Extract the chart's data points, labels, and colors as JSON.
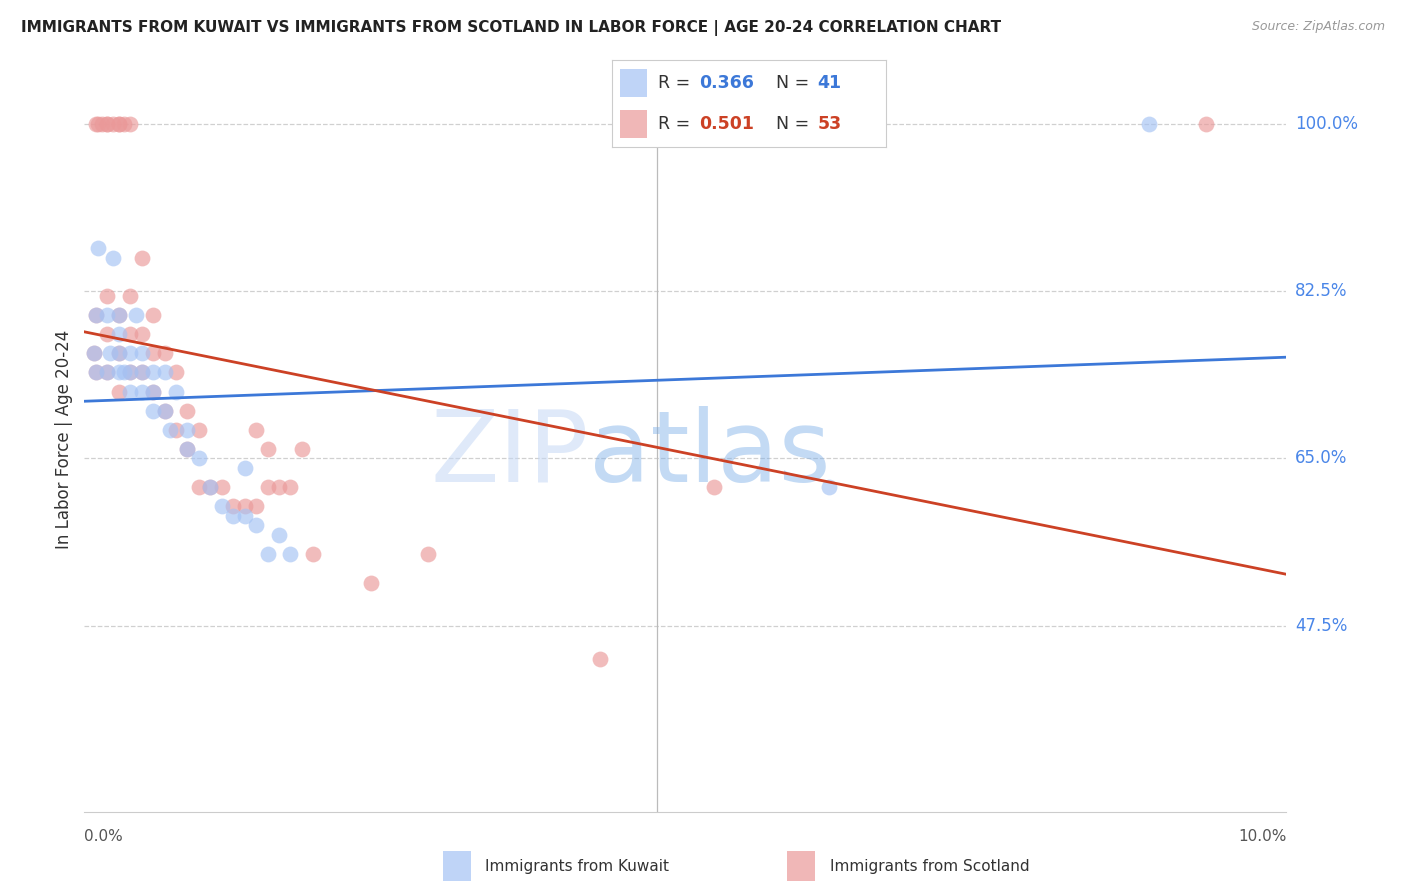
{
  "title": "IMMIGRANTS FROM KUWAIT VS IMMIGRANTS FROM SCOTLAND IN LABOR FORCE | AGE 20-24 CORRELATION CHART",
  "source": "Source: ZipAtlas.com",
  "ylabel": "In Labor Force | Age 20-24",
  "ytick_labels": [
    "100.0%",
    "82.5%",
    "65.0%",
    "47.5%"
  ],
  "ytick_values": [
    1.0,
    0.825,
    0.65,
    0.475
  ],
  "ylim": [
    0.28,
    1.06
  ],
  "xlim": [
    0.0,
    0.105
  ],
  "watermark_zip": "ZIP",
  "watermark_atlas": "atlas",
  "legend_r1": "0.366",
  "legend_n1": "41",
  "legend_r2": "0.501",
  "legend_n2": "53",
  "color_kuwait": "#a4c2f4",
  "color_scotland": "#ea9999",
  "color_line_kuwait": "#3c78d8",
  "color_line_scotland": "#cc4125",
  "color_ytick": "#4a86e8",
  "color_source": "#999999",
  "color_title": "#222222",
  "color_grid": "#d0d0d0",
  "background_color": "#ffffff",
  "xtick_label_left": "0.0%",
  "xtick_label_right": "10.0%",
  "vline_x": 0.05,
  "kuwait_x": [
    0.0008,
    0.001,
    0.001,
    0.0012,
    0.002,
    0.002,
    0.0022,
    0.0025,
    0.003,
    0.003,
    0.003,
    0.003,
    0.0035,
    0.004,
    0.004,
    0.004,
    0.0045,
    0.005,
    0.005,
    0.005,
    0.006,
    0.006,
    0.006,
    0.007,
    0.007,
    0.0075,
    0.008,
    0.009,
    0.009,
    0.01,
    0.011,
    0.012,
    0.013,
    0.014,
    0.014,
    0.015,
    0.016,
    0.017,
    0.018,
    0.065,
    0.093
  ],
  "kuwait_y": [
    0.76,
    0.74,
    0.8,
    0.87,
    0.74,
    0.8,
    0.76,
    0.86,
    0.74,
    0.76,
    0.78,
    0.8,
    0.74,
    0.72,
    0.74,
    0.76,
    0.8,
    0.72,
    0.74,
    0.76,
    0.7,
    0.72,
    0.74,
    0.7,
    0.74,
    0.68,
    0.72,
    0.66,
    0.68,
    0.65,
    0.62,
    0.6,
    0.59,
    0.59,
    0.64,
    0.58,
    0.55,
    0.57,
    0.55,
    0.62,
    1.0
  ],
  "scotland_x": [
    0.0008,
    0.001,
    0.001,
    0.001,
    0.0012,
    0.0015,
    0.002,
    0.002,
    0.002,
    0.002,
    0.002,
    0.0025,
    0.003,
    0.003,
    0.003,
    0.003,
    0.003,
    0.0035,
    0.004,
    0.004,
    0.004,
    0.004,
    0.005,
    0.005,
    0.005,
    0.006,
    0.006,
    0.006,
    0.007,
    0.007,
    0.008,
    0.008,
    0.009,
    0.009,
    0.01,
    0.01,
    0.011,
    0.012,
    0.013,
    0.014,
    0.015,
    0.015,
    0.016,
    0.016,
    0.017,
    0.018,
    0.019,
    0.02,
    0.025,
    0.03,
    0.045,
    0.055,
    0.098
  ],
  "scotland_y": [
    0.76,
    0.74,
    0.8,
    1.0,
    1.0,
    1.0,
    0.74,
    0.78,
    0.82,
    1.0,
    1.0,
    1.0,
    0.72,
    0.76,
    0.8,
    1.0,
    1.0,
    1.0,
    0.74,
    0.78,
    0.82,
    1.0,
    0.74,
    0.78,
    0.86,
    0.72,
    0.76,
    0.8,
    0.7,
    0.76,
    0.68,
    0.74,
    0.66,
    0.7,
    0.62,
    0.68,
    0.62,
    0.62,
    0.6,
    0.6,
    0.6,
    0.68,
    0.62,
    0.66,
    0.62,
    0.62,
    0.66,
    0.55,
    0.52,
    0.55,
    0.44,
    0.62,
    1.0
  ]
}
